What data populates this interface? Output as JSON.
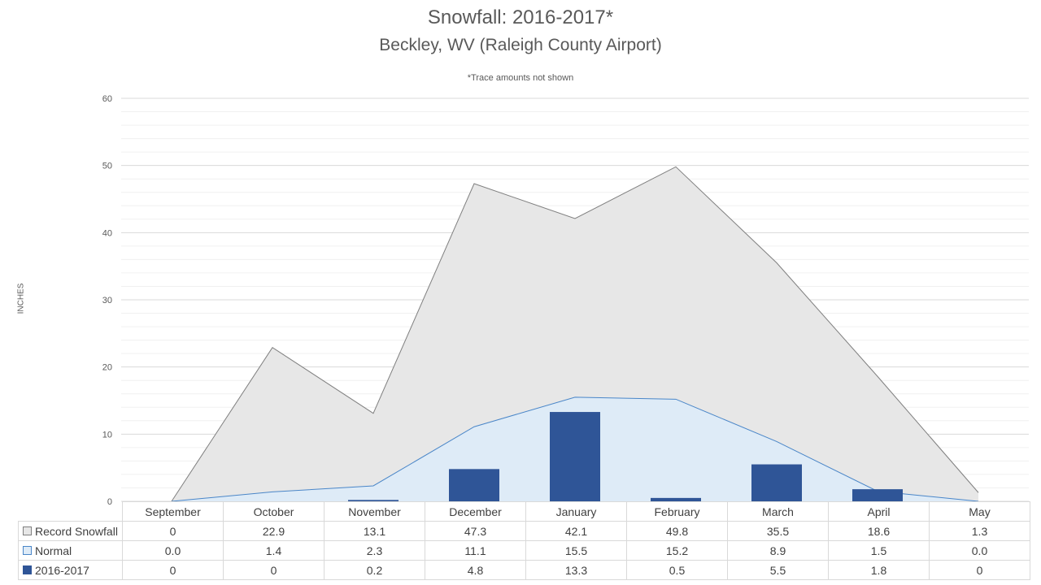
{
  "chart_data": {
    "type": "area",
    "title": "Snowfall: 2016-2017*",
    "subtitle": "Beckley, WV (Raleigh County Airport)",
    "note": "*Trace amounts not shown",
    "ylabel": "INCHES",
    "ylim": [
      0,
      60
    ],
    "yticks": [
      "0",
      "10",
      "20",
      "30",
      "40",
      "50",
      "60"
    ],
    "grid": true,
    "categories": [
      "September",
      "October",
      "November",
      "December",
      "January",
      "February",
      "March",
      "April",
      "May"
    ],
    "series": [
      {
        "name": "Record Snowfall",
        "type": "area",
        "color": "#e7e7e7",
        "edge": "#7f7f7f",
        "values": [
          0,
          22.9,
          13.1,
          47.3,
          42.1,
          49.8,
          35.5,
          18.6,
          1.3
        ],
        "labels": [
          "0",
          "22.9",
          "13.1",
          "47.3",
          "42.1",
          "49.8",
          "35.5",
          "18.6",
          "1.3"
        ]
      },
      {
        "name": "Normal",
        "type": "area",
        "color": "#deebf7",
        "edge": "#4a86c8",
        "values": [
          0.0,
          1.4,
          2.3,
          11.1,
          15.5,
          15.2,
          8.9,
          1.5,
          0.0
        ],
        "labels": [
          "0.0",
          "1.4",
          "2.3",
          "11.1",
          "15.5",
          "15.2",
          "8.9",
          "1.5",
          "0.0"
        ]
      },
      {
        "name": "2016-2017",
        "type": "bar",
        "color": "#2f5597",
        "edge": "#2f5597",
        "values": [
          0,
          0,
          0.2,
          4.8,
          13.3,
          0.5,
          5.5,
          1.8,
          0
        ],
        "labels": [
          "0",
          "0",
          "0.2",
          "4.8",
          "13.3",
          "0.5",
          "5.5",
          "1.8",
          "0"
        ]
      }
    ]
  }
}
